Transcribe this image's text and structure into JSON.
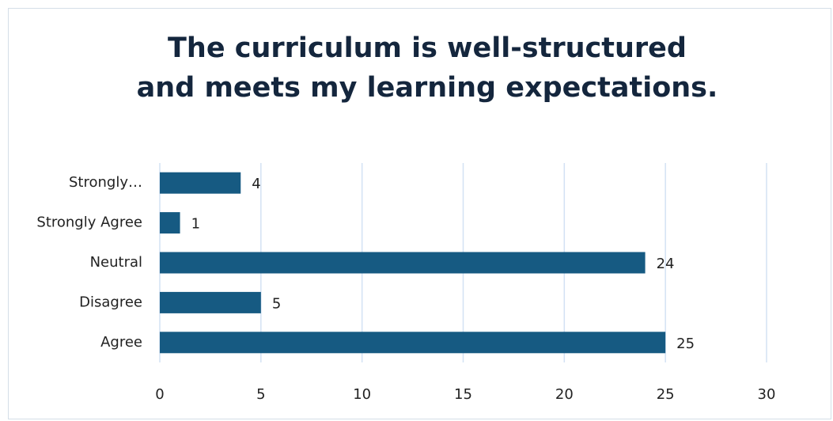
{
  "chart_data": {
    "type": "bar",
    "orientation": "horizontal",
    "title": "The curriculum is well-structured and meets my learning expectations.",
    "categories": [
      "Strongly…",
      "Strongly Agree",
      "Neutral",
      "Disagree",
      "Agree"
    ],
    "values": [
      4,
      1,
      24,
      5,
      25
    ],
    "color": "#165a82",
    "xlim": [
      0,
      30
    ],
    "xticks": [
      0,
      5,
      10,
      15,
      20,
      25,
      30
    ],
    "grid": true
  }
}
